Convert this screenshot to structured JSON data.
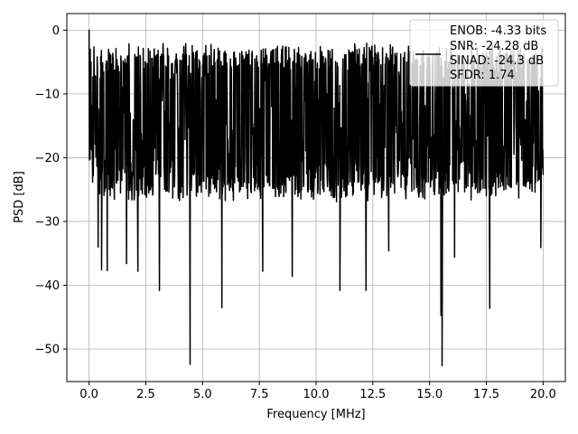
{
  "chart_data": {
    "type": "line",
    "title": "",
    "xlabel": "Frequency [MHz]",
    "ylabel": "PSD [dB]",
    "xlim": [
      -0.98,
      20.98
    ],
    "ylim": [
      -55.1,
      2.6
    ],
    "x_ticks": [
      0.0,
      2.5,
      5.0,
      7.5,
      10.0,
      12.5,
      15.0,
      17.5,
      20.0
    ],
    "x_tick_labels": [
      "0.0",
      "2.5",
      "5.0",
      "7.5",
      "10.0",
      "12.5",
      "15.0",
      "17.5",
      "20.0"
    ],
    "y_ticks": [
      0,
      -10,
      -20,
      -30,
      -40,
      -50
    ],
    "y_tick_labels": [
      "0",
      "−10",
      "−20",
      "−30",
      "−40",
      "−50"
    ],
    "grid": true,
    "line_color": "#000000",
    "legend": {
      "placement": "top-right",
      "entries": [
        "ENOB: -4.33 bits",
        "SNR: -24.28 dB",
        "SINAD: -24.3 dB",
        "SFDR: 1.74"
      ]
    },
    "series": [
      {
        "x_start": 0.0,
        "x_end": 20.0,
        "band_top": [
          -7,
          -5
        ],
        "band_bottom": [
          -23,
          -21
        ],
        "peaks": [
          {
            "x": 0.0,
            "y": 0.0
          },
          {
            "x": 0.05,
            "y": -3.0
          },
          {
            "x": 0.4,
            "y": -34.0
          },
          {
            "x": 0.55,
            "y": -37.6
          },
          {
            "x": 0.8,
            "y": -37.7
          },
          {
            "x": 1.65,
            "y": -36.6
          },
          {
            "x": 2.15,
            "y": -37.8
          },
          {
            "x": 3.1,
            "y": -40.8
          },
          {
            "x": 4.45,
            "y": -52.4
          },
          {
            "x": 5.85,
            "y": -43.5
          },
          {
            "x": 7.65,
            "y": -37.8
          },
          {
            "x": 8.95,
            "y": -38.6
          },
          {
            "x": 11.05,
            "y": -40.8
          },
          {
            "x": 12.2,
            "y": -40.8
          },
          {
            "x": 13.2,
            "y": -34.6
          },
          {
            "x": 15.5,
            "y": -44.7
          },
          {
            "x": 15.55,
            "y": -52.6
          },
          {
            "x": 16.1,
            "y": -35.6
          },
          {
            "x": 17.65,
            "y": -43.6
          },
          {
            "x": 19.9,
            "y": -34.1
          }
        ]
      }
    ]
  }
}
